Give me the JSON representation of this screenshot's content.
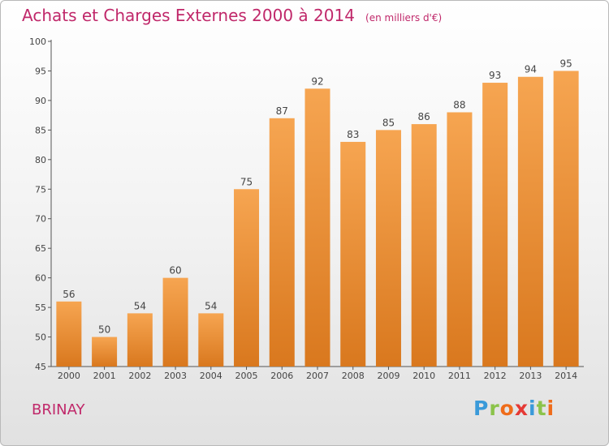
{
  "header": {
    "title": "Achats et Charges Externes 2000 à 2014",
    "unit": "(en milliers d'€)"
  },
  "footer": {
    "town": "BRINAY",
    "logo": [
      "P",
      "r",
      "o",
      "x",
      "i",
      "t",
      "i"
    ],
    "logo_colors": [
      "#3a9ad9",
      "#8bc34a",
      "#ef6c1a",
      "#e53935",
      "#3a9ad9",
      "#8bc34a",
      "#ef6c1a"
    ]
  },
  "colors": {
    "bar_top": "#f6a551",
    "bar_bottom": "#d9781e",
    "accent": "#c0286a"
  },
  "chart_data": {
    "type": "bar",
    "title": "Achats et Charges Externes 2000 à 2014",
    "subtitle": "(en milliers d'€)",
    "categories": [
      "2000",
      "2001",
      "2002",
      "2003",
      "2004",
      "2005",
      "2006",
      "2007",
      "2008",
      "2009",
      "2010",
      "2011",
      "2012",
      "2013",
      "2014"
    ],
    "values": [
      56,
      50,
      54,
      60,
      54,
      75,
      87,
      92,
      83,
      85,
      86,
      88,
      93,
      94,
      95
    ],
    "ylim": [
      45,
      100
    ],
    "yticks": [
      45,
      50,
      55,
      60,
      65,
      70,
      75,
      80,
      85,
      90,
      95,
      100
    ],
    "grid": false,
    "legend": "none",
    "data_labels": true
  }
}
